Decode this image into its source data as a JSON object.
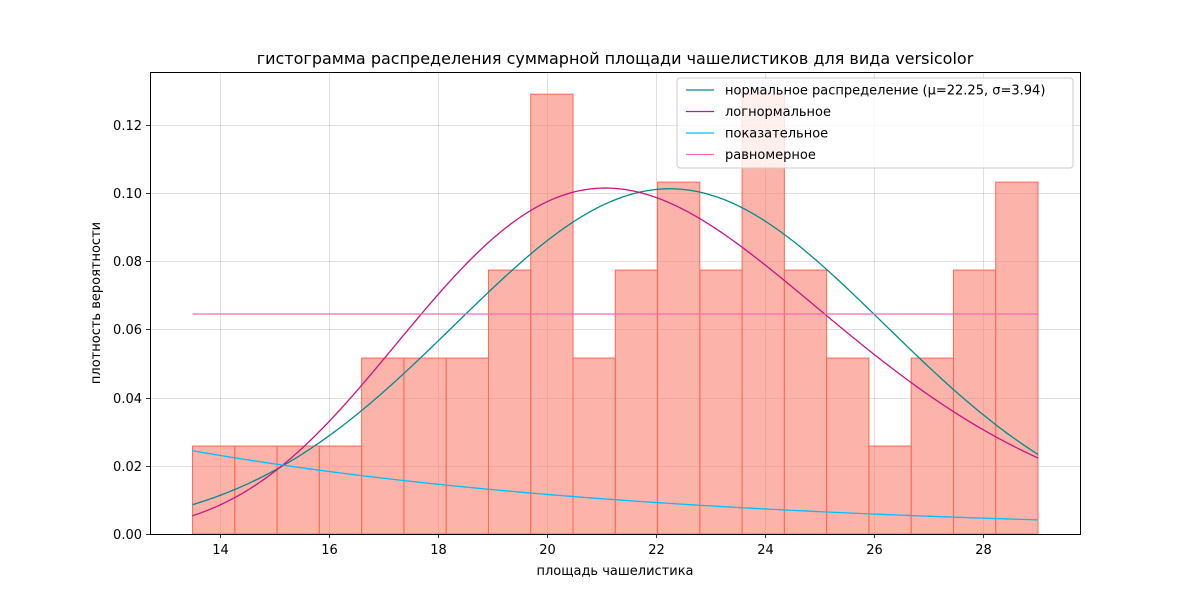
{
  "chart_data": {
    "type": "bar",
    "title": "гистограмма распределения суммарной площади чашелистиков для вида versicolor",
    "xlabel": "площадь чашелистика",
    "ylabel": "плотность вероятности",
    "xlim": [
      12.72,
      29.77
    ],
    "ylim": [
      0,
      0.1355
    ],
    "xticks": [
      14,
      16,
      18,
      20,
      22,
      24,
      26,
      28
    ],
    "yticks": [
      0.0,
      0.02,
      0.04,
      0.06,
      0.08,
      0.1,
      0.12
    ],
    "ytick_labels": [
      "0.00",
      "0.02",
      "0.04",
      "0.06",
      "0.08",
      "0.10",
      "0.12"
    ],
    "grid": true,
    "legend_position": "top-right",
    "histogram": {
      "color": "#fa8072",
      "bin_edges": [
        13.5,
        14.275,
        15.05,
        15.825,
        16.6,
        17.375,
        18.15,
        18.925,
        19.7,
        20.475,
        21.25,
        22.025,
        22.8,
        23.575,
        24.35,
        25.125,
        25.9,
        26.675,
        27.45,
        28.225,
        29.0
      ],
      "density": [
        0.0258,
        0.0258,
        0.0258,
        0.0258,
        0.0516,
        0.0516,
        0.0516,
        0.0774,
        0.129,
        0.0516,
        0.0774,
        0.1032,
        0.0774,
        0.129,
        0.0774,
        0.0516,
        0.0258,
        0.0516,
        0.0774,
        0.1032
      ]
    },
    "series": [
      {
        "name": "нормальное распределение (μ=22.25, σ=3.94)",
        "kind": "normal",
        "mu": 22.25,
        "sigma": 3.94,
        "color": "#008b8b"
      },
      {
        "name": "логнормальное",
        "kind": "lognormal",
        "mu_log": 3.0815,
        "sigma_log": 0.1835,
        "color": "#c71585"
      },
      {
        "name": "показательное",
        "kind": "exponential",
        "loc": 0,
        "mean": 8.74,
        "color": "#00bfff"
      },
      {
        "name": "равномерное",
        "kind": "uniform",
        "a": 13.5,
        "b": 29.0,
        "color": "#ff69b4"
      }
    ],
    "curve_x_range": [
      13.5,
      29.0
    ]
  }
}
